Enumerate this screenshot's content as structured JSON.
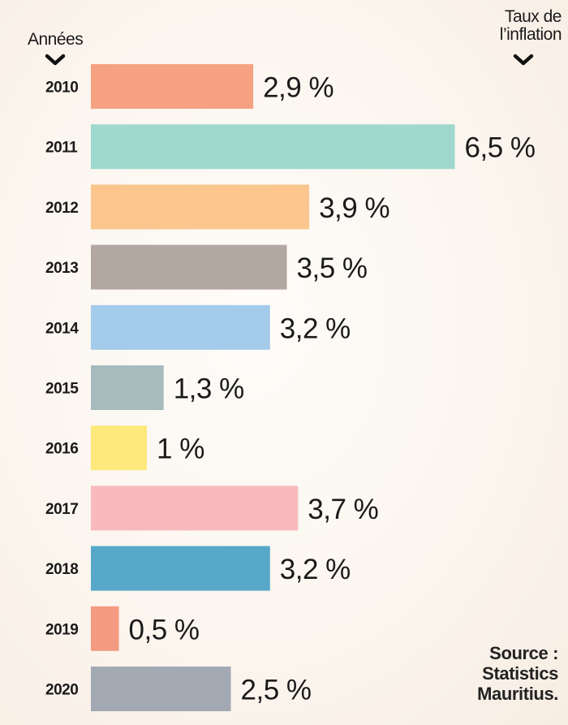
{
  "header": {
    "years_label": "Années",
    "rate_label_line1": "Taux de",
    "rate_label_line2": "l’inflation"
  },
  "source": {
    "line1": "Source :",
    "line2": "Statistics",
    "line3": "Mauritius."
  },
  "chart_data": {
    "type": "bar",
    "orientation": "horizontal",
    "title": "",
    "xlabel": "Taux de l’inflation",
    "ylabel": "Années",
    "unit": "%",
    "xlim": [
      0,
      6.5
    ],
    "categories": [
      "2010",
      "2011",
      "2012",
      "2013",
      "2014",
      "2015",
      "2016",
      "2017",
      "2018",
      "2019",
      "2020"
    ],
    "values": [
      2.9,
      6.5,
      3.9,
      3.5,
      3.2,
      1.3,
      1,
      3.7,
      3.2,
      0.5,
      2.5
    ],
    "value_labels": [
      "2,9 %",
      "6,5 %",
      "3,9 %",
      "3,5 %",
      "3,2 %",
      "1,3 %",
      "1 %",
      "3,7 %",
      "3,2 %",
      "0,5 %",
      "2,5 %"
    ],
    "colors": [
      "#f6a282",
      "#9fd8cc",
      "#fbc68e",
      "#b3a7a2",
      "#a5cbea",
      "#a7bbbc",
      "#fde97c",
      "#f8babc",
      "#57a8c8",
      "#f49a80",
      "#a3a9b3"
    ]
  }
}
